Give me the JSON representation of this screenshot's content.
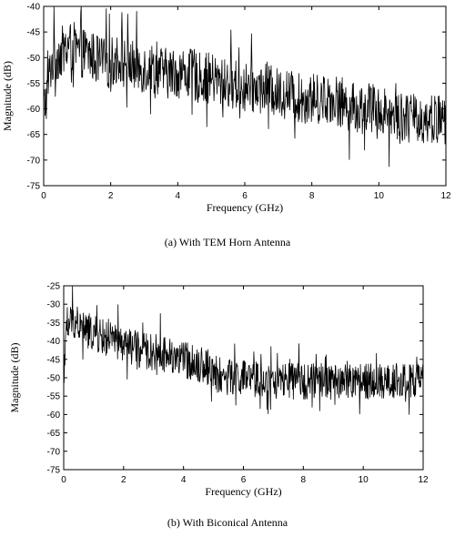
{
  "chart_data": [
    {
      "type": "line",
      "caption": "(a) With TEM Horn Antenna",
      "xlabel": "Frequency (GHz)",
      "ylabel": "Magnitude (dB)",
      "xlim": [
        0,
        12
      ],
      "ylim": [
        -75,
        -40
      ],
      "xticks": [
        0,
        2,
        4,
        6,
        8,
        10,
        12
      ],
      "yticks": [
        -40,
        -45,
        -50,
        -55,
        -60,
        -65,
        -70,
        -75
      ],
      "grid": false,
      "series": [
        {
          "x": [
            0.0,
            0.1,
            0.2,
            0.3,
            0.5,
            0.7,
            0.9,
            1.0,
            1.2,
            1.5,
            1.8,
            2.0,
            2.3,
            2.5,
            2.8,
            3.0,
            3.3,
            3.6,
            4.0,
            4.3,
            4.6,
            5.0,
            5.3,
            5.6,
            6.0,
            6.3,
            6.6,
            7.0,
            7.3,
            7.6,
            8.0,
            8.3,
            8.6,
            9.0,
            9.3,
            9.6,
            10.0,
            10.3,
            10.6,
            11.0,
            11.3,
            11.6,
            12.0
          ],
          "y": [
            -60,
            -57,
            -52,
            -50,
            -49,
            -48,
            -48,
            -49,
            -49,
            -50,
            -51,
            -51,
            -50,
            -51,
            -52,
            -52,
            -52,
            -53,
            -53,
            -53,
            -54,
            -54,
            -55,
            -55,
            -56,
            -56,
            -56,
            -57,
            -57,
            -58,
            -58,
            -58,
            -58,
            -59,
            -60,
            -60,
            -60,
            -61,
            -61,
            -62,
            -62,
            -62,
            -62
          ]
        }
      ]
    },
    {
      "type": "line",
      "caption": "(b) With Biconical Antenna",
      "xlabel": "Frequency (GHz)",
      "ylabel": "Magnitude (dB)",
      "xlim": [
        0,
        12
      ],
      "ylim": [
        -75,
        -25
      ],
      "xticks": [
        0,
        2,
        4,
        6,
        8,
        10,
        12
      ],
      "yticks": [
        -25,
        -30,
        -35,
        -40,
        -45,
        -50,
        -55,
        -60,
        -65,
        -70,
        -75
      ],
      "grid": false,
      "series": [
        {
          "x": [
            0.0,
            0.1,
            0.2,
            0.3,
            0.5,
            0.7,
            1.0,
            1.3,
            1.6,
            2.0,
            2.4,
            2.8,
            3.2,
            3.6,
            4.0,
            4.4,
            4.8,
            5.0,
            5.2,
            5.5,
            6.0,
            6.5,
            7.0,
            7.5,
            8.0,
            8.5,
            9.0,
            9.5,
            10.0,
            10.5,
            11.0,
            11.5,
            12.0
          ],
          "y": [
            -45,
            -38,
            -35,
            -34,
            -36,
            -37,
            -38,
            -39,
            -40,
            -41,
            -42,
            -43,
            -43,
            -44,
            -45,
            -46,
            -47,
            -48,
            -50,
            -50,
            -50,
            -51,
            -51,
            -51,
            -51,
            -51,
            -51,
            -51,
            -51,
            -51,
            -51,
            -51,
            -51
          ]
        }
      ]
    }
  ]
}
